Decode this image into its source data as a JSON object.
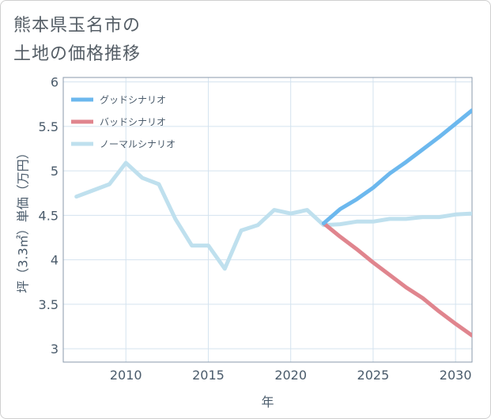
{
  "title_lines": [
    "熊本県玉名市の",
    "土地の価格推移"
  ],
  "chart_data": {
    "type": "line",
    "title": "熊本県玉名市の土地の価格推移",
    "xlabel": "年",
    "ylabel": "坪（3.3㎡）単価（万円）",
    "xlim": [
      2006.2,
      2031
    ],
    "ylim": [
      2.85,
      6.05
    ],
    "xticks": [
      2010,
      2015,
      2020,
      2025,
      2030
    ],
    "yticks": [
      3,
      3.5,
      4,
      4.5,
      5,
      5.5,
      6
    ],
    "ytick_labels": [
      "3",
      "3.5",
      "4",
      "4.5",
      "5",
      "5.5",
      "6"
    ],
    "grid": true,
    "legend_position": "top-left",
    "series": [
      {
        "name": "グッドシナリオ",
        "color": "#6cb8ee",
        "x": [
          2022,
          2023,
          2024,
          2025,
          2026,
          2027,
          2028,
          2029,
          2030,
          2031
        ],
        "values": [
          4.41,
          4.57,
          4.68,
          4.81,
          4.97,
          5.1,
          5.24,
          5.38,
          5.53,
          5.68
        ]
      },
      {
        "name": "バッドシナリオ",
        "color": "#e0858e",
        "x": [
          2022,
          2023,
          2024,
          2025,
          2026,
          2027,
          2028,
          2029,
          2030,
          2031
        ],
        "values": [
          4.41,
          4.26,
          4.12,
          3.97,
          3.83,
          3.69,
          3.57,
          3.42,
          3.28,
          3.15
        ]
      },
      {
        "name": "ノーマルシナリオ",
        "color": "#bfe0ee",
        "x": [
          2007,
          2008,
          2009,
          2010,
          2011,
          2012,
          2013,
          2014,
          2015,
          2016,
          2017,
          2018,
          2019,
          2020,
          2021,
          2022,
          2023,
          2024,
          2025,
          2026,
          2027,
          2028,
          2029,
          2030,
          2031
        ],
        "values": [
          4.71,
          4.78,
          4.85,
          5.09,
          4.92,
          4.85,
          4.46,
          4.16,
          4.16,
          3.9,
          4.33,
          4.39,
          4.56,
          4.52,
          4.56,
          4.39,
          4.4,
          4.43,
          4.43,
          4.46,
          4.46,
          4.48,
          4.48,
          4.51,
          4.52
        ]
      }
    ]
  }
}
